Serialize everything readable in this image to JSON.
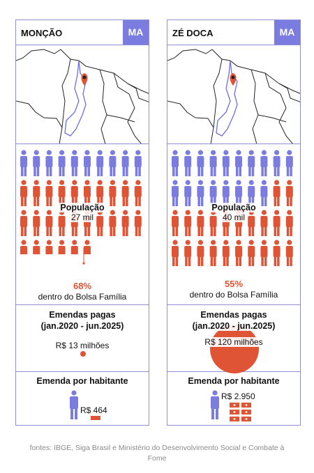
{
  "colors": {
    "accent": "#7b7ce0",
    "orange": "#e05436",
    "border": "#8e8fd6"
  },
  "cards": [
    {
      "city": "MONÇÃO",
      "uf": "MA",
      "population_label": "População",
      "population_value": "27 mil",
      "bolsa_share_pct": 68,
      "bolsa_pct": "68%",
      "bolsa_label": "dentro do Bolsa Família",
      "emendas_title": "Emendas pagas",
      "emendas_period": "(jan.2020 - jun.2025)",
      "emendas_value": "R$ 13 milhões",
      "emendas_millions": 13,
      "per_hab_title": "Emenda por habitante",
      "per_hab_value": "R$ 464"
    },
    {
      "city": "ZÉ DOCA",
      "uf": "MA",
      "population_label": "População",
      "population_value": "40 mil",
      "bolsa_share_pct": 55,
      "bolsa_pct": "55%",
      "bolsa_label": "dentro do Bolsa Família",
      "emendas_title": "Emendas pagas",
      "emendas_period": "(jan.2020 - jun.2025)",
      "emendas_value": "R$ 120 milhões",
      "emendas_millions": 120,
      "per_hab_title": "Emenda por habitante",
      "per_hab_value": "R$ 2.950"
    }
  ],
  "footer": "fontes: IBGE, Siga Brasil e Ministério do Desenvolvimento Social e Combate à Fome"
}
